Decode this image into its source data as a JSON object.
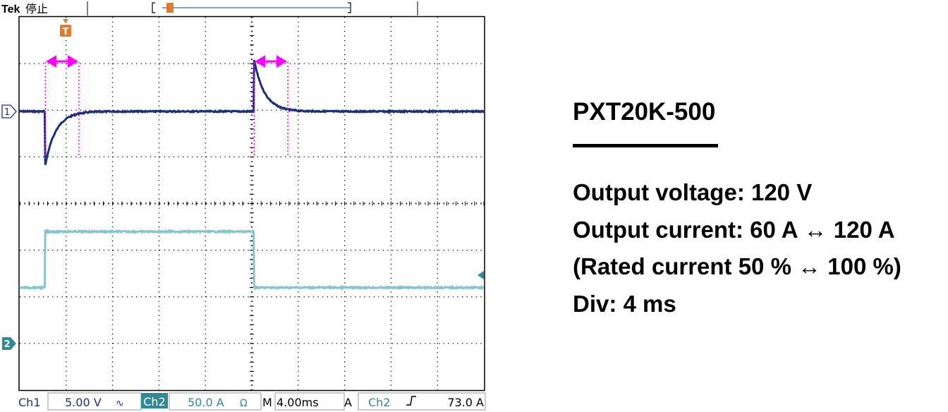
{
  "scope": {
    "brand": "Tek",
    "status": "停止",
    "trigger_marker": "T",
    "ch1_ground_marker": "1",
    "ch2_ground_marker": "2",
    "readout": {
      "ch1_label": "Ch1",
      "ch1_scale": "5.00 V",
      "ch1_coupling_icon": "∿",
      "ch2_label": "Ch2",
      "ch2_scale": "50.0 A",
      "ch2_coupling_icon": "Ω",
      "timebase_prefix": "M",
      "timebase": "4.00ms",
      "trigger_mode": "A",
      "trigger_source": "Ch2",
      "trigger_slope_icon": "rising-edge-icon",
      "trigger_level": "73.0 A"
    }
  },
  "info": {
    "model": "PXT20K-500",
    "lines": [
      "Output voltage: 120 V",
      "Output current: 60 A ↔ 120 A",
      "(Rated current 50 % ↔ 100 %)",
      "Div: 4 ms"
    ]
  },
  "colors": {
    "ch1_trace": "#1f2f7a",
    "ch2_trace": "#86c5cf",
    "marker": "#ff00ff",
    "trigger_marker": "#e07a2e",
    "ch2_badge": "#2f8a96",
    "grid": "#000000"
  },
  "chart_data": {
    "type": "line",
    "grid": true,
    "xlim": [
      0,
      40
    ],
    "x_unit": "ms",
    "x_div": 4,
    "ch1": {
      "name": "Ch1",
      "unit": "V",
      "volts_per_div": 5,
      "baseline_div": 0,
      "transients": [
        {
          "t_start": 2.2,
          "peak_div": -1.15,
          "recovery_ms": 2.9,
          "direction": "undershoot"
        },
        {
          "t_start": 20.2,
          "peak_div": 1.1,
          "recovery_ms": 2.9,
          "direction": "overshoot"
        }
      ]
    },
    "ch2": {
      "name": "Ch2",
      "unit": "A",
      "amps_per_div": 50,
      "low_value_A": 60,
      "high_value_A": 120,
      "step_up_ms": 2.2,
      "step_down_ms": 20.2
    },
    "trigger": {
      "source": "Ch2",
      "level_A": 73.0,
      "time_ms": 2.2
    }
  }
}
